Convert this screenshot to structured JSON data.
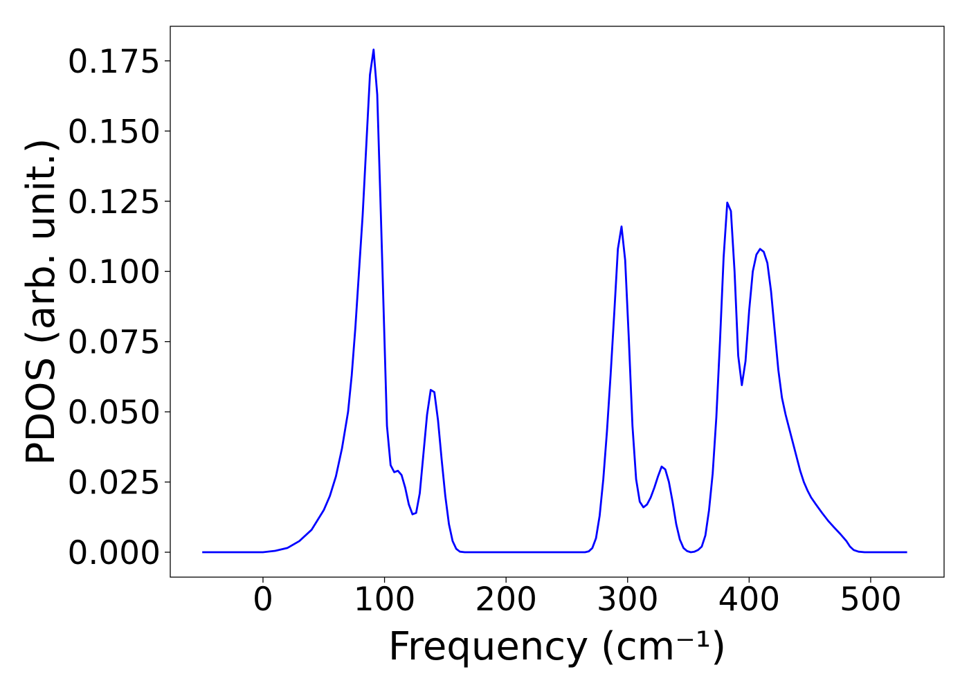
{
  "chart_data": {
    "type": "line",
    "xlabel": "Frequency (cm⁻¹)",
    "ylabel": "PDOS (arb. unit.)",
    "xlim": [
      -76.3,
      560.4
    ],
    "ylim": [
      -0.00887,
      0.1873
    ],
    "xticks": [
      0,
      100,
      200,
      300,
      400,
      500
    ],
    "yticks": [
      {
        "value": 0,
        "label": "0.000"
      },
      {
        "value": 0.025,
        "label": "0.025"
      },
      {
        "value": 0.05,
        "label": "0.050"
      },
      {
        "value": 0.075,
        "label": "0.075"
      },
      {
        "value": 0.1,
        "label": "0.100"
      },
      {
        "value": 0.125,
        "label": "0.125"
      },
      {
        "value": 0.15,
        "label": "0.150"
      },
      {
        "value": 0.175,
        "label": "0.175"
      }
    ],
    "grid": false,
    "x": [
      -50,
      0,
      10,
      20,
      30,
      40,
      50,
      55,
      60,
      65,
      70,
      73,
      76,
      79,
      82,
      85,
      88,
      91,
      94,
      97,
      100,
      102,
      105,
      108,
      111,
      114,
      117,
      120,
      123,
      126,
      129,
      132,
      135,
      138,
      141,
      144,
      147,
      150,
      153,
      156,
      159,
      162,
      166,
      200,
      265,
      268,
      271,
      274,
      277,
      280,
      283,
      286,
      289,
      292,
      295,
      298,
      301,
      304,
      307,
      310,
      313,
      316,
      319,
      322,
      325,
      328,
      331,
      334,
      337,
      340,
      343,
      346,
      349,
      352,
      355,
      358,
      361,
      364,
      367,
      370,
      373,
      376,
      379,
      382,
      385,
      388,
      391,
      394,
      397,
      400,
      403,
      406,
      409,
      412,
      415,
      418,
      421,
      424,
      427,
      430,
      433,
      436,
      439,
      442,
      445,
      448,
      451,
      455,
      460,
      465,
      470,
      475,
      480,
      483,
      486,
      490,
      495,
      530
    ],
    "series": [
      {
        "color": "#0000ff",
        "values": [
          0,
          0,
          0.0005,
          0.0015,
          0.004,
          0.008,
          0.015,
          0.02,
          0.027,
          0.037,
          0.05,
          0.063,
          0.08,
          0.1,
          0.12,
          0.145,
          0.17,
          0.179,
          0.163,
          0.12,
          0.075,
          0.045,
          0.031,
          0.0285,
          0.029,
          0.0275,
          0.023,
          0.017,
          0.0135,
          0.014,
          0.021,
          0.035,
          0.049,
          0.0578,
          0.057,
          0.047,
          0.033,
          0.02,
          0.01,
          0.004,
          0.0012,
          0.0002,
          0,
          0,
          0,
          0.0003,
          0.0015,
          0.005,
          0.013,
          0.026,
          0.043,
          0.063,
          0.085,
          0.108,
          0.116,
          0.104,
          0.076,
          0.045,
          0.026,
          0.018,
          0.016,
          0.017,
          0.0195,
          0.023,
          0.027,
          0.0305,
          0.0295,
          0.025,
          0.018,
          0.01,
          0.0045,
          0.0015,
          0.0004,
          0,
          0.0002,
          0.0008,
          0.002,
          0.006,
          0.015,
          0.028,
          0.048,
          0.075,
          0.105,
          0.1245,
          0.1215,
          0.1,
          0.07,
          0.0595,
          0.068,
          0.086,
          0.1,
          0.106,
          0.108,
          0.107,
          0.103,
          0.093,
          0.079,
          0.065,
          0.055,
          0.049,
          0.044,
          0.039,
          0.034,
          0.029,
          0.025,
          0.022,
          0.0195,
          0.017,
          0.014,
          0.0112,
          0.0088,
          0.0065,
          0.004,
          0.002,
          0.0008,
          0.0002,
          0,
          0
        ]
      }
    ]
  }
}
